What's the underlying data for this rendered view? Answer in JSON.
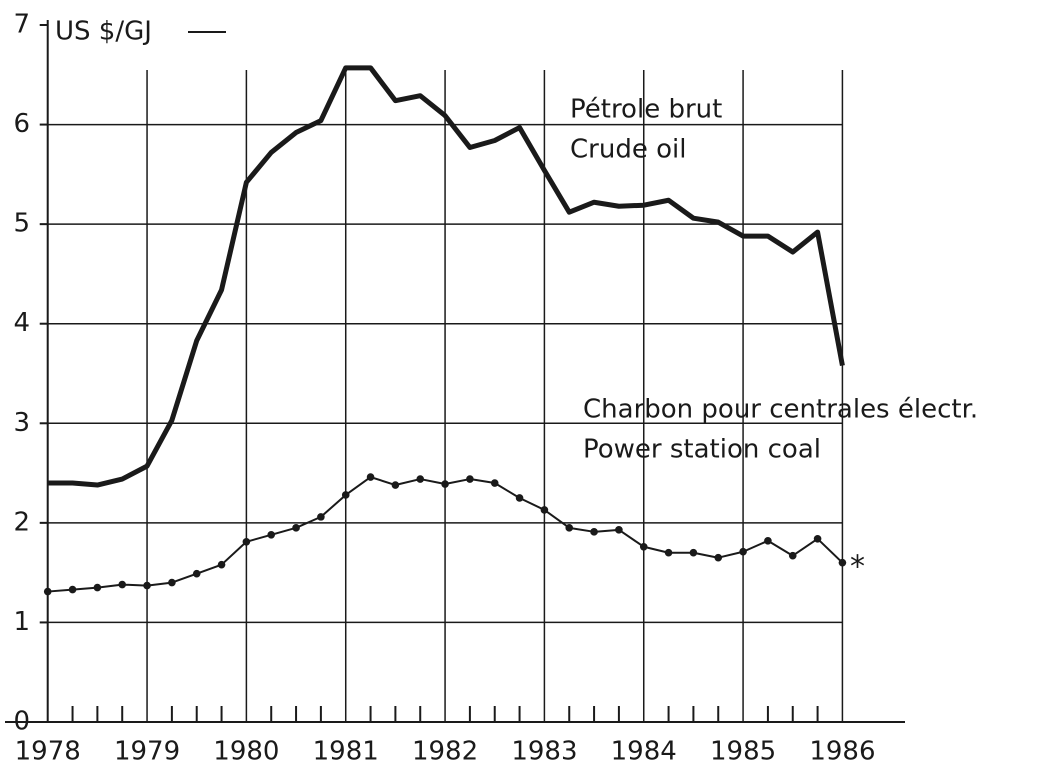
{
  "chart_data": {
    "type": "line",
    "y_label": "US $/GJ",
    "x": [
      1978,
      1978.25,
      1978.5,
      1978.75,
      1979,
      1979.25,
      1979.5,
      1979.75,
      1980,
      1980.25,
      1980.5,
      1980.75,
      1981,
      1981.25,
      1981.5,
      1981.75,
      1982,
      1982.25,
      1982.5,
      1982.75,
      1983,
      1983.25,
      1983.5,
      1983.75,
      1984,
      1984.25,
      1984.5,
      1984.75,
      1985,
      1985.25,
      1985.5,
      1985.75,
      1986
    ],
    "series": [
      {
        "name": "Pétrole brut / Crude oil",
        "color": "#1a1a1a",
        "values": [
          2.4,
          2.4,
          2.38,
          2.44,
          2.57,
          3.03,
          3.83,
          4.34,
          5.42,
          5.72,
          5.92,
          6.04,
          6.57,
          6.57,
          6.24,
          6.29,
          6.09,
          5.77,
          5.84,
          5.97,
          5.54,
          5.12,
          5.22,
          5.18,
          5.19,
          5.24,
          5.06,
          5.02,
          4.88,
          4.88,
          4.72,
          4.92,
          3.58
        ]
      },
      {
        "name": "Charbon pour centrales électr. / Power station coal",
        "color": "#1a1a1a",
        "values": [
          1.31,
          1.33,
          1.35,
          1.38,
          1.37,
          1.4,
          1.49,
          1.58,
          1.81,
          1.88,
          1.95,
          2.06,
          2.28,
          2.46,
          2.38,
          2.44,
          2.39,
          2.44,
          2.4,
          2.25,
          2.13,
          1.95,
          1.91,
          1.93,
          1.76,
          1.7,
          1.7,
          1.65,
          1.71,
          1.82,
          1.67,
          1.84,
          1.6
        ]
      }
    ],
    "labels": [
      "Pétrole brut",
      "Crude oil",
      "Charbon pour centrales électr.",
      "Power station coal"
    ],
    "note": "*",
    "xlim": [
      1977.57,
      1986.63
    ],
    "xticks": [
      1978,
      1979,
      1980,
      1981,
      1982,
      1983,
      1984,
      1985,
      1986
    ],
    "ylim": [
      0,
      7
    ],
    "yticks": [
      0,
      1,
      2,
      3,
      4,
      5,
      6,
      7
    ],
    "grid": true
  }
}
